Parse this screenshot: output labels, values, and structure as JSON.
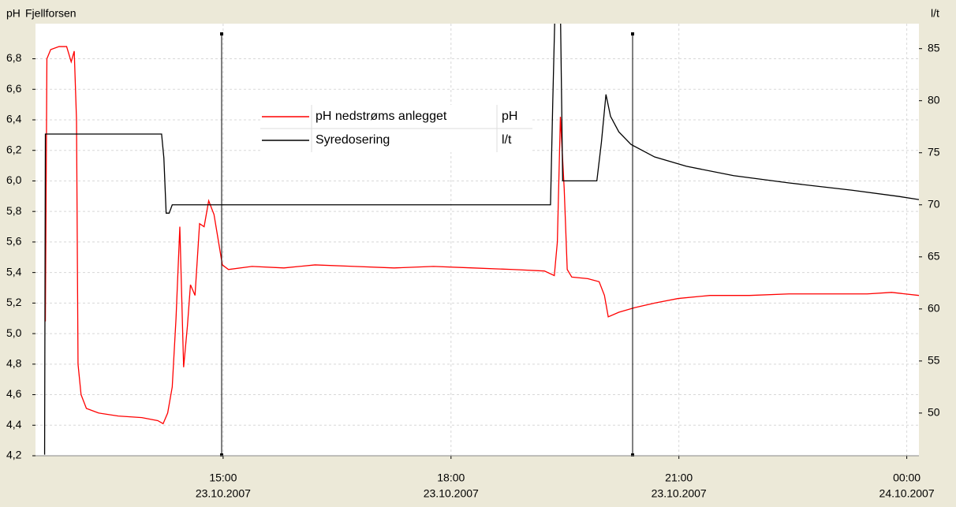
{
  "chart_data": {
    "type": "line",
    "title": "Fjellforsen",
    "ylabel": "pH",
    "y2label": "l/t",
    "xlim": [
      12.53,
      24.16
    ],
    "xticks": [
      {
        "value": 15,
        "label": "15:00"
      },
      {
        "value": 18,
        "label": "18:00"
      },
      {
        "value": 21,
        "label": "21:00"
      },
      {
        "value": 24,
        "label": "00:00"
      }
    ],
    "xtick_dates": [
      "23.10.2007",
      "23.10.2007",
      "23.10.2007",
      "24.10.2007"
    ],
    "ylim": [
      4.2,
      7.03
    ],
    "yticks": [
      {
        "value": 4.2,
        "label": "4,2"
      },
      {
        "value": 4.4,
        "label": "4,4"
      },
      {
        "value": 4.6,
        "label": "4,6"
      },
      {
        "value": 4.8,
        "label": "4,8"
      },
      {
        "value": 5.0,
        "label": "5,0"
      },
      {
        "value": 5.2,
        "label": "5,2"
      },
      {
        "value": 5.4,
        "label": "5,4"
      },
      {
        "value": 5.6,
        "label": "5,6"
      },
      {
        "value": 5.8,
        "label": "5,8"
      },
      {
        "value": 6.0,
        "label": "6,0"
      },
      {
        "value": 6.2,
        "label": "6,2"
      },
      {
        "value": 6.4,
        "label": "6,4"
      },
      {
        "value": 6.6,
        "label": "6,6"
      },
      {
        "value": 6.8,
        "label": "6,8"
      }
    ],
    "y2lim": [
      45.9,
      87.4
    ],
    "y2ticks": [
      50,
      55,
      60,
      65,
      70,
      75,
      80,
      85
    ],
    "grid": true,
    "series": [
      {
        "name": "pH nedstrøms anlegget",
        "unit": "pH",
        "color": "#ff0000",
        "x": [
          12.66,
          12.68,
          12.73,
          12.84,
          12.94,
          13.0,
          13.04,
          13.07,
          13.09,
          13.13,
          13.2,
          13.36,
          13.62,
          13.93,
          14.14,
          14.21,
          14.27,
          14.33,
          14.38,
          14.43,
          14.48,
          14.53,
          14.57,
          14.63,
          14.69,
          14.75,
          14.81,
          14.88,
          14.94,
          14.99,
          15.07,
          15.38,
          15.8,
          16.21,
          16.73,
          17.25,
          17.77,
          18.29,
          18.81,
          19.23,
          19.36,
          19.4,
          19.44,
          19.49,
          19.53,
          19.59,
          19.8,
          19.95,
          20.02,
          20.07,
          20.21,
          20.42,
          20.68,
          20.99,
          21.41,
          21.93,
          22.45,
          22.96,
          23.48,
          23.8,
          24.16
        ],
        "values": [
          5.08,
          6.8,
          6.86,
          6.88,
          6.88,
          6.78,
          6.85,
          6.4,
          4.8,
          4.6,
          4.51,
          4.48,
          4.46,
          4.45,
          4.43,
          4.41,
          4.48,
          4.65,
          5.1,
          5.7,
          4.78,
          5.05,
          5.32,
          5.25,
          5.72,
          5.7,
          5.87,
          5.78,
          5.6,
          5.45,
          5.42,
          5.44,
          5.43,
          5.45,
          5.44,
          5.43,
          5.44,
          5.43,
          5.42,
          5.41,
          5.38,
          5.6,
          6.42,
          5.95,
          5.42,
          5.37,
          5.36,
          5.34,
          5.25,
          5.11,
          5.14,
          5.17,
          5.2,
          5.23,
          5.25,
          5.25,
          5.26,
          5.26,
          5.26,
          5.27,
          5.25
        ]
      },
      {
        "name": "Syredosering",
        "unit": "l/t",
        "color": "#000000",
        "axis": "y2",
        "x": [
          12.65,
          12.66,
          14.19,
          14.22,
          14.25,
          14.29,
          14.33,
          19.31,
          19.34,
          19.37,
          19.44,
          19.47,
          19.92,
          19.98,
          20.04,
          20.1,
          20.21,
          20.37,
          20.68,
          21.1,
          21.72,
          22.45,
          23.28,
          23.9,
          24.16
        ],
        "values": [
          46.0,
          76.8,
          76.8,
          74.5,
          69.2,
          69.2,
          70.0,
          70.0,
          80,
          89,
          89,
          72.3,
          72.3,
          76,
          80.6,
          78.5,
          77,
          75.8,
          74.6,
          73.7,
          72.8,
          72.1,
          71.4,
          70.8,
          70.5
        ]
      }
    ]
  }
}
